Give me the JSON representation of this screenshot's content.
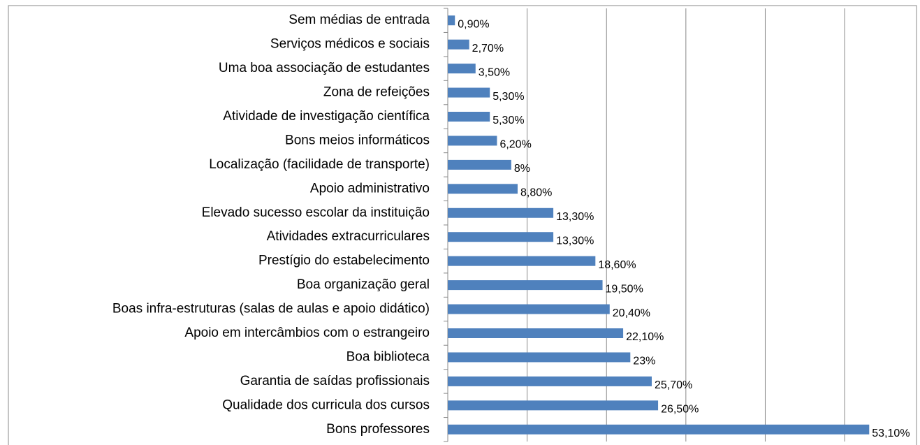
{
  "chart_data": {
    "type": "bar",
    "orientation": "horizontal",
    "categories": [
      "Sem médias de entrada",
      "Serviços médicos e sociais",
      "Uma boa associação de estudantes",
      "Zona de refeições",
      "Atividade de investigação científica",
      "Bons meios informáticos",
      "Localização (facilidade de transporte)",
      "Apoio administrativo",
      "Elevado sucesso escolar da instituição",
      "Atividades extracurriculares",
      "Prestígio do estabelecimento",
      "Boa organização geral",
      "Boas infra-estruturas (salas de aulas e apoio didático)",
      "Apoio em intercâmbios com o estrangeiro",
      "Boa biblioteca",
      "Garantia de saídas profissionais",
      "Qualidade dos curricula dos cursos",
      "Bons professores"
    ],
    "values": [
      0.9,
      2.7,
      3.5,
      5.3,
      5.3,
      6.2,
      8,
      8.8,
      13.3,
      13.3,
      18.6,
      19.5,
      20.4,
      22.1,
      23,
      25.7,
      26.5,
      53.1
    ],
    "value_labels": [
      "0,90%",
      "2,70%",
      "3,50%",
      "5,30%",
      "5,30%",
      "6,20%",
      "8%",
      "8,80%",
      "13,30%",
      "13,30%",
      "18,60%",
      "19,50%",
      "20,40%",
      "22,10%",
      "23%",
      "25,70%",
      "26,50%",
      "53,10%"
    ],
    "color": "#4f81bd",
    "xlim": [
      0,
      59.5
    ],
    "xticks": [
      0,
      10,
      20,
      30,
      40,
      50
    ],
    "grid": true
  }
}
